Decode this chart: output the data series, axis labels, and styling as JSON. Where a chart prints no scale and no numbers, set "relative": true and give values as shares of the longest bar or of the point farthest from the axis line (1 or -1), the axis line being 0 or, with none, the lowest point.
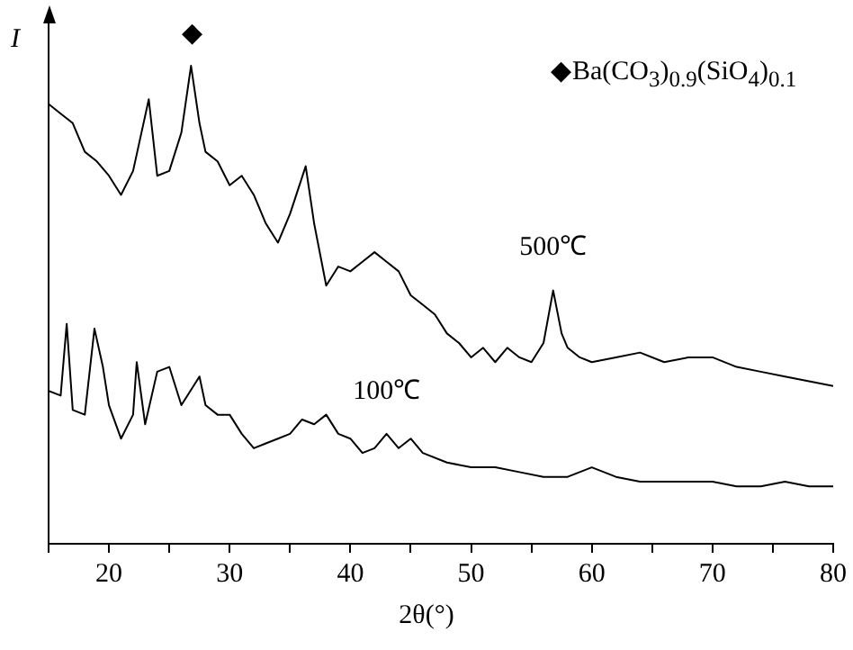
{
  "chart_data": {
    "type": "line",
    "relative": true,
    "xlabel": "2θ(°)",
    "ylabel": "I",
    "legend": false,
    "grid": false,
    "marker": "none",
    "tick_labels": "x",
    "xlim": [
      15,
      80
    ],
    "xticks": [
      {
        "value": 15,
        "label": null
      },
      20,
      {
        "value": 25,
        "label": null
      },
      30,
      {
        "value": 35,
        "label": null
      },
      40,
      {
        "value": 45,
        "label": null
      },
      50,
      {
        "value": 55,
        "label": null
      },
      60,
      {
        "value": 65,
        "label": null
      },
      70,
      {
        "value": 75,
        "label": null
      },
      80
    ],
    "annotations": [
      "◆",
      "◆Ba(CO$_{3}$)$_{0.9}$(SiO$_{4}$)$_{0.1}$"
    ],
    "series": [
      {
        "name": "500℃",
        "color": "#000000",
        "x": [
          15,
          16,
          17,
          18,
          19,
          20,
          21,
          22,
          23.3,
          24,
          25,
          26,
          26.8,
          27.5,
          28,
          29,
          30,
          31,
          32,
          33,
          34,
          35,
          36.3,
          37,
          38,
          39,
          40,
          41,
          42,
          43,
          44,
          45,
          46,
          47,
          48,
          49,
          50,
          51,
          52,
          53,
          54,
          55,
          56,
          56.8,
          57.5,
          58,
          59,
          60,
          62,
          64,
          66,
          68,
          70,
          72,
          74,
          76,
          78,
          80
        ],
        "values": [
          0.92,
          0.9,
          0.88,
          0.82,
          0.8,
          0.77,
          0.73,
          0.78,
          0.93,
          0.77,
          0.78,
          0.86,
          1,
          0.88,
          0.82,
          0.8,
          0.75,
          0.77,
          0.73,
          0.67,
          0.63,
          0.69,
          0.79,
          0.67,
          0.54,
          0.58,
          0.57,
          0.59,
          0.61,
          0.59,
          0.57,
          0.52,
          0.5,
          0.48,
          0.44,
          0.42,
          0.39,
          0.41,
          0.38,
          0.41,
          0.39,
          0.38,
          0.42,
          0.53,
          0.44,
          0.41,
          0.39,
          0.38,
          0.39,
          0.4,
          0.38,
          0.39,
          0.39,
          0.37,
          0.36,
          0.35,
          0.34,
          0.33
        ]
      },
      {
        "name": "100℃",
        "color": "#000000",
        "x": [
          15,
          16,
          16.5,
          17,
          18,
          18.8,
          19.5,
          20,
          21,
          22,
          22.3,
          23,
          24,
          25,
          26,
          27.5,
          28,
          29,
          30,
          31,
          32,
          33,
          34,
          35,
          36,
          37,
          38,
          39,
          40,
          41,
          42,
          43,
          44,
          45,
          46,
          48,
          50,
          52,
          54,
          56,
          58,
          60,
          62,
          64,
          66,
          68,
          70,
          72,
          74,
          76,
          78,
          80
        ],
        "values": [
          0.32,
          0.31,
          0.46,
          0.28,
          0.27,
          0.45,
          0.37,
          0.29,
          0.22,
          0.27,
          0.38,
          0.25,
          0.36,
          0.37,
          0.29,
          0.35,
          0.29,
          0.27,
          0.27,
          0.23,
          0.2,
          0.21,
          0.22,
          0.23,
          0.26,
          0.25,
          0.27,
          0.23,
          0.22,
          0.19,
          0.2,
          0.23,
          0.2,
          0.22,
          0.19,
          0.17,
          0.16,
          0.16,
          0.15,
          0.14,
          0.14,
          0.16,
          0.14,
          0.13,
          0.13,
          0.13,
          0.13,
          0.12,
          0.12,
          0.13,
          0.12,
          0.12
        ]
      }
    ]
  }
}
